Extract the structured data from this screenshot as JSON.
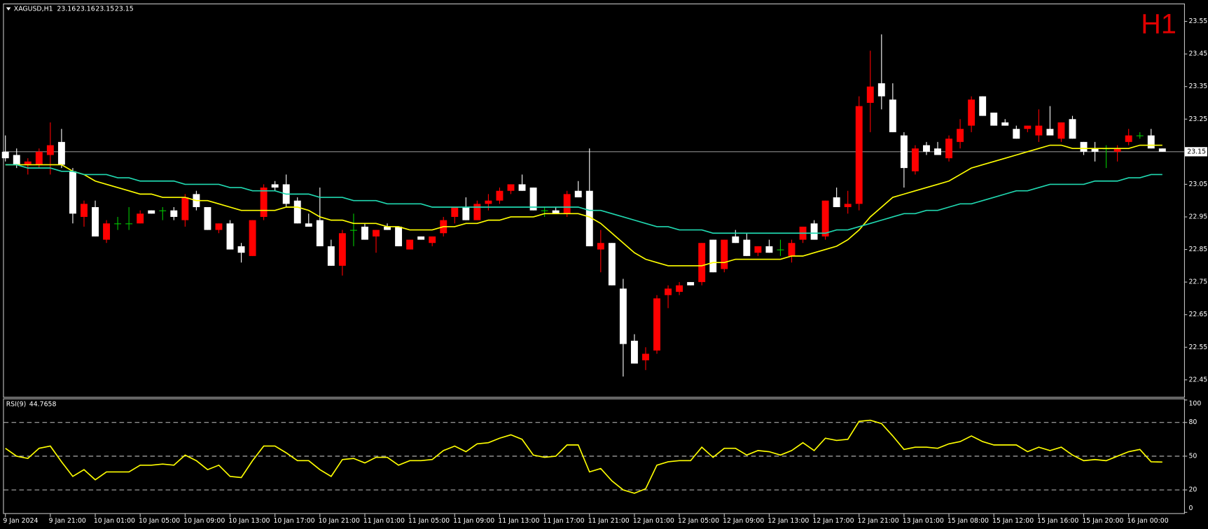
{
  "chart_data": [
    {
      "type": "candlestick",
      "title": "XAGUSD,H1",
      "badge": "H1",
      "categories": [
        "9 Jan 2024",
        null,
        null,
        null,
        "9 Jan 21:00",
        null,
        null,
        null,
        "10 Jan 01:00",
        null,
        null,
        null,
        "10 Jan 05:00",
        null,
        null,
        null,
        "10 Jan 09:00",
        null,
        null,
        null,
        "10 Jan 13:00",
        null,
        null,
        null,
        "10 Jan 17:00",
        null,
        null,
        null,
        "10 Jan 21:00",
        null,
        null,
        null,
        "11 Jan 01:00",
        null,
        null,
        null,
        "11 Jan 05:00",
        null,
        null,
        null,
        "11 Jan 09:00",
        null,
        null,
        null,
        "11 Jan 13:00",
        null,
        null,
        null,
        "11 Jan 17:00",
        null,
        null,
        null,
        "11 Jan 21:00",
        null,
        null,
        null,
        "12 Jan 01:00",
        null,
        null,
        null,
        "12 Jan 05:00",
        null,
        null,
        null,
        "12 Jan 09:00",
        null,
        null,
        null,
        "12 Jan 13:00",
        null,
        null,
        null,
        "12 Jan 17:00",
        null,
        null,
        null,
        "12 Jan 21:00",
        null,
        null,
        null,
        "13 Jan 01:00",
        null,
        null,
        null,
        "15 Jan 08:00",
        null,
        null,
        null,
        "15 Jan 12:00",
        null,
        null,
        null,
        "15 Jan 16:00",
        null,
        null,
        null,
        "15 Jan 20:00",
        null,
        null,
        null,
        "16 Jan 00:00",
        null,
        null,
        null
      ],
      "open": [
        23.15,
        23.14,
        23.11,
        23.11,
        23.14,
        23.18,
        23.09,
        22.95,
        22.98,
        22.88,
        22.93,
        22.93,
        22.93,
        22.97,
        22.97,
        22.97,
        22.94,
        23.02,
        22.98,
        22.91,
        22.93,
        22.86,
        22.83,
        22.95,
        23.05,
        23.05,
        23.0,
        22.93,
        22.94,
        22.86,
        22.8,
        22.91,
        22.92,
        22.89,
        22.92,
        22.92,
        22.85,
        22.89,
        22.87,
        22.9,
        22.95,
        22.98,
        22.94,
        22.99,
        23.0,
        23.03,
        23.05,
        23.04,
        22.97,
        22.97,
        22.96,
        23.03,
        23.03,
        22.85,
        22.87,
        22.73,
        22.57,
        22.51,
        22.54,
        22.71,
        22.72,
        22.75,
        22.75,
        22.88,
        22.79,
        22.89,
        22.88,
        22.84,
        22.86,
        22.85,
        22.83,
        22.88,
        22.93,
        22.89,
        23.01,
        22.98,
        22.99,
        23.3,
        23.36,
        23.31,
        23.2,
        23.09,
        23.17,
        23.16,
        23.13,
        23.18,
        23.23,
        23.32,
        23.27,
        23.24,
        23.22,
        23.22,
        23.2,
        23.22,
        23.19,
        23.25,
        23.18,
        23.16,
        23.16,
        23.15,
        23.18,
        23.2,
        23.2,
        23.16
      ],
      "high": [
        23.2,
        23.16,
        23.13,
        23.16,
        23.24,
        23.22,
        23.1,
        23.0,
        23.0,
        22.94,
        22.95,
        22.98,
        22.97,
        22.97,
        22.98,
        22.98,
        23.02,
        23.03,
        22.98,
        22.93,
        22.94,
        22.87,
        22.94,
        23.05,
        23.06,
        23.08,
        23.01,
        22.96,
        23.04,
        22.88,
        22.91,
        22.96,
        22.93,
        22.91,
        22.93,
        22.92,
        22.88,
        22.89,
        22.89,
        22.95,
        22.98,
        23.01,
        23.0,
        23.02,
        23.04,
        23.05,
        23.08,
        23.04,
        22.98,
        22.98,
        23.03,
        23.06,
        23.16,
        22.91,
        22.87,
        22.76,
        22.59,
        22.55,
        22.71,
        22.74,
        22.75,
        22.75,
        22.87,
        22.88,
        22.88,
        22.91,
        22.9,
        22.86,
        22.88,
        22.88,
        22.88,
        22.92,
        22.94,
        23.0,
        23.04,
        23.03,
        23.32,
        23.46,
        23.51,
        23.36,
        23.21,
        23.17,
        23.18,
        23.18,
        23.2,
        23.25,
        23.32,
        23.32,
        23.27,
        23.25,
        23.23,
        23.23,
        23.28,
        23.29,
        23.24,
        23.26,
        23.18,
        23.18,
        23.17,
        23.17,
        23.22,
        23.21,
        23.22,
        23.16
      ],
      "low": [
        23.12,
        23.1,
        23.08,
        23.1,
        23.08,
        23.1,
        22.93,
        22.92,
        22.89,
        22.87,
        22.91,
        22.91,
        22.93,
        22.96,
        22.94,
        22.94,
        22.92,
        22.97,
        22.91,
        22.9,
        22.85,
        22.81,
        22.83,
        22.94,
        23.03,
        22.98,
        22.93,
        22.92,
        22.86,
        22.8,
        22.77,
        22.86,
        22.88,
        22.84,
        22.91,
        22.86,
        22.85,
        22.88,
        22.86,
        22.89,
        22.93,
        22.94,
        22.94,
        22.97,
        22.99,
        23.02,
        23.03,
        22.97,
        22.95,
        22.96,
        22.95,
        23.01,
        22.86,
        22.78,
        22.74,
        22.46,
        22.5,
        22.48,
        22.53,
        22.67,
        22.71,
        22.74,
        22.74,
        22.78,
        22.78,
        22.87,
        22.83,
        22.83,
        22.84,
        22.83,
        22.81,
        22.87,
        22.88,
        22.88,
        22.98,
        22.96,
        22.97,
        23.21,
        23.28,
        23.21,
        23.04,
        23.08,
        23.14,
        23.14,
        23.12,
        23.16,
        23.21,
        23.26,
        23.23,
        23.23,
        23.19,
        23.21,
        23.18,
        23.2,
        23.18,
        23.19,
        23.14,
        23.12,
        23.1,
        23.12,
        23.17,
        23.19,
        23.16,
        23.15
      ],
      "close": [
        23.13,
        23.11,
        23.12,
        23.15,
        23.17,
        23.11,
        22.96,
        22.99,
        22.89,
        22.93,
        22.93,
        22.93,
        22.96,
        22.96,
        22.97,
        22.95,
        23.01,
        22.98,
        22.91,
        22.93,
        22.85,
        22.84,
        22.94,
        23.04,
        23.04,
        22.99,
        22.93,
        22.92,
        22.86,
        22.8,
        22.9,
        22.91,
        22.88,
        22.91,
        22.91,
        22.86,
        22.88,
        22.88,
        22.89,
        22.94,
        22.98,
        22.94,
        22.99,
        23.0,
        23.03,
        23.05,
        23.03,
        22.97,
        22.97,
        22.96,
        23.02,
        23.01,
        22.86,
        22.87,
        22.74,
        22.56,
        22.5,
        22.53,
        22.7,
        22.73,
        22.74,
        22.74,
        22.87,
        22.78,
        22.88,
        22.87,
        22.83,
        22.86,
        22.84,
        22.85,
        22.87,
        22.92,
        22.88,
        23.0,
        22.98,
        22.99,
        23.29,
        23.35,
        23.32,
        23.21,
        23.1,
        23.16,
        23.15,
        23.14,
        23.19,
        23.22,
        23.31,
        23.26,
        23.23,
        23.23,
        23.19,
        23.23,
        23.23,
        23.2,
        23.24,
        23.19,
        23.15,
        23.15,
        23.16,
        23.16,
        23.2,
        23.2,
        23.16,
        23.15
      ],
      "up_color": "#ff0000",
      "down_color": "#ffffff",
      "doji_color": "#00c800",
      "overlays": [
        {
          "color": "#ffff00",
          "values": [
            23.11,
            23.11,
            23.11,
            23.11,
            23.11,
            23.11,
            23.09,
            23.08,
            23.06,
            23.05,
            23.04,
            23.03,
            23.02,
            23.02,
            23.01,
            23.01,
            23.01,
            23.0,
            23.0,
            22.99,
            22.98,
            22.97,
            22.97,
            22.97,
            22.97,
            22.98,
            22.98,
            22.97,
            22.95,
            22.94,
            22.94,
            22.93,
            22.93,
            22.93,
            22.92,
            22.92,
            22.91,
            22.91,
            22.91,
            22.92,
            22.92,
            22.93,
            22.93,
            22.94,
            22.94,
            22.95,
            22.95,
            22.95,
            22.96,
            22.96,
            22.96,
            22.96,
            22.95,
            22.93,
            22.9,
            22.87,
            22.84,
            22.82,
            22.81,
            22.8,
            22.8,
            22.8,
            22.8,
            22.81,
            22.81,
            22.82,
            22.82,
            22.82,
            22.82,
            22.82,
            22.83,
            22.83,
            22.84,
            22.85,
            22.86,
            22.88,
            22.91,
            22.95,
            22.98,
            23.01,
            23.02,
            23.03,
            23.04,
            23.05,
            23.06,
            23.08,
            23.1,
            23.11,
            23.12,
            23.13,
            23.14,
            23.15,
            23.16,
            23.17,
            23.17,
            23.16,
            23.16,
            23.16,
            23.16,
            23.16,
            23.16,
            23.17,
            23.17,
            23.17
          ]
        },
        {
          "color": "#20d8b0",
          "values": [
            23.11,
            23.11,
            23.1,
            23.1,
            23.1,
            23.09,
            23.09,
            23.08,
            23.08,
            23.08,
            23.07,
            23.07,
            23.06,
            23.06,
            23.06,
            23.06,
            23.05,
            23.05,
            23.05,
            23.05,
            23.04,
            23.04,
            23.03,
            23.03,
            23.03,
            23.02,
            23.02,
            23.02,
            23.01,
            23.01,
            23.01,
            23.0,
            23.0,
            23.0,
            22.99,
            22.99,
            22.99,
            22.99,
            22.98,
            22.98,
            22.98,
            22.98,
            22.98,
            22.98,
            22.98,
            22.98,
            22.98,
            22.98,
            22.98,
            22.98,
            22.98,
            22.98,
            22.97,
            22.97,
            22.96,
            22.95,
            22.94,
            22.93,
            22.92,
            22.92,
            22.91,
            22.91,
            22.91,
            22.9,
            22.9,
            22.9,
            22.9,
            22.9,
            22.9,
            22.9,
            22.9,
            22.9,
            22.9,
            22.9,
            22.91,
            22.91,
            22.92,
            22.93,
            22.94,
            22.95,
            22.96,
            22.96,
            22.97,
            22.97,
            22.98,
            22.99,
            22.99,
            23.0,
            23.01,
            23.02,
            23.03,
            23.03,
            23.04,
            23.05,
            23.05,
            23.05,
            23.05,
            23.06,
            23.06,
            23.06,
            23.07,
            23.07,
            23.08,
            23.08
          ]
        }
      ],
      "bid": 23.15,
      "ylim": [
        22.4,
        23.6
      ],
      "yticks": [
        23.55,
        23.45,
        23.35,
        23.25,
        23.05,
        22.95,
        22.85,
        22.75,
        22.65,
        22.55,
        22.45
      ]
    },
    {
      "type": "line",
      "title": "RSI(9)",
      "values": [
        57,
        50,
        48,
        57,
        59,
        45,
        32,
        38,
        29,
        36,
        36,
        36,
        42,
        42,
        43,
        42,
        51,
        46,
        38,
        42,
        32,
        31,
        46,
        59,
        59,
        53,
        46,
        46,
        38,
        32,
        47,
        48,
        44,
        49,
        49,
        42,
        46,
        46,
        47,
        55,
        59,
        54,
        61,
        62,
        66,
        69,
        65,
        51,
        49,
        50,
        60,
        60,
        36,
        39,
        28,
        20,
        17,
        21,
        42,
        45,
        46,
        46,
        58,
        49,
        57,
        57,
        51,
        55,
        54,
        51,
        55,
        62,
        55,
        66,
        64,
        65,
        81,
        82,
        79,
        68,
        56,
        58,
        58,
        57,
        61,
        63,
        68,
        63,
        60,
        60,
        60,
        54,
        58,
        55,
        58,
        51,
        46,
        47,
        46,
        50,
        54,
        56,
        45,
        44.7658
      ],
      "color": "#ffff00",
      "ylim": [
        0,
        100
      ],
      "yticks": [
        0,
        20,
        50,
        80,
        100
      ]
    }
  ]
}
